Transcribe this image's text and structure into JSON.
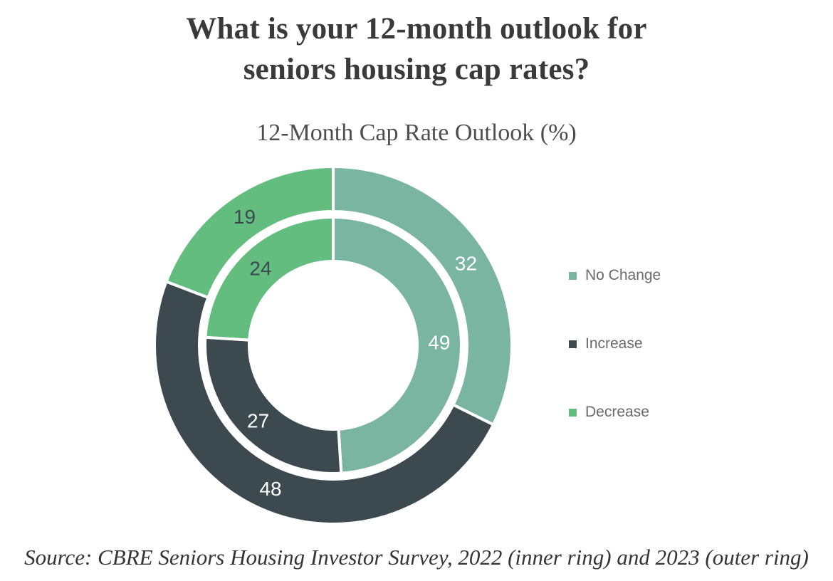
{
  "page": {
    "title_lines": [
      "What is your 12-month outlook for",
      "seniors housing cap rates?"
    ],
    "source": "Source: CBRE Seniors Housing Investor Survey, 2022 (inner ring) and 2023 (outer ring)"
  },
  "chart_data": {
    "type": "donut",
    "title": "12-Month Cap Rate Outlook (%)",
    "unit": "%",
    "categories": [
      "No Change",
      "Increase",
      "Decrease"
    ],
    "colors": [
      "#7AB5A2",
      "#3C4A50",
      "#63BD7E"
    ],
    "value_label_colors": [
      "#ffffff",
      "#ffffff",
      "#3E4A52"
    ],
    "start_angle_deg": 0,
    "direction": "clockwise",
    "rings": [
      {
        "name": "2022 (inner ring)",
        "position": "inner",
        "values": [
          49,
          27,
          24
        ]
      },
      {
        "name": "2023 (outer ring)",
        "position": "outer",
        "values": [
          32,
          48,
          19
        ]
      }
    ],
    "legend": {
      "position": "right",
      "entries": [
        "No Change",
        "Increase",
        "Decrease"
      ]
    }
  }
}
